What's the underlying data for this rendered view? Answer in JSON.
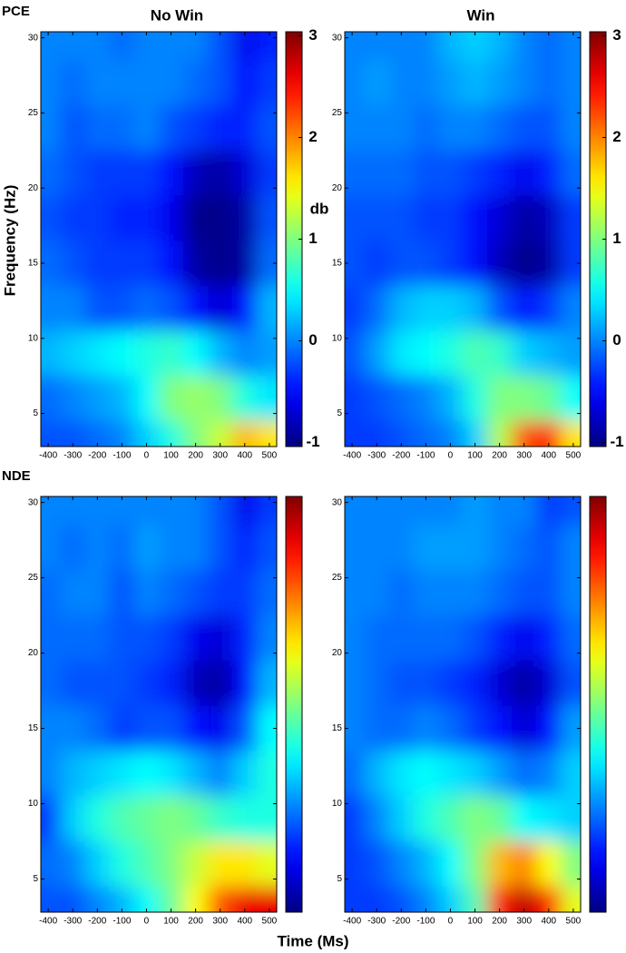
{
  "chart_data": [
    {
      "type": "heatmap",
      "row_label": "PCE",
      "title": "No Win",
      "ylabel": "Frequency (Hz)",
      "colorbar_label": "db",
      "colormap": "jet",
      "x": [
        -400,
        -300,
        -200,
        -100,
        0,
        100,
        200,
        300,
        400,
        500
      ],
      "y": [
        30,
        27,
        24,
        21,
        18,
        15,
        12,
        9,
        6,
        3
      ],
      "z": [
        [
          0,
          0,
          0,
          -0.1,
          0,
          0,
          0,
          -0.2,
          -0.6,
          -0.4
        ],
        [
          0,
          -0.1,
          0,
          0,
          0,
          0,
          -0.1,
          -0.2,
          -0.5,
          -0.3
        ],
        [
          0,
          -0.2,
          -0.1,
          -0.1,
          0,
          -0.2,
          -0.3,
          -0.4,
          -0.4,
          -0.2
        ],
        [
          -0.1,
          -0.2,
          -0.3,
          -0.3,
          -0.3,
          -0.5,
          -0.8,
          -0.9,
          -0.7,
          -0.3
        ],
        [
          -0.2,
          -0.3,
          -0.3,
          -0.4,
          -0.4,
          -0.6,
          -1.0,
          -1.0,
          -0.9,
          -0.2
        ],
        [
          -0.1,
          -0.2,
          -0.3,
          -0.3,
          -0.3,
          -0.5,
          -0.9,
          -1.0,
          -0.9,
          -0.1
        ],
        [
          0,
          0,
          -0.2,
          -0.2,
          -0.1,
          -0.2,
          -0.5,
          -0.7,
          -0.5,
          0.2
        ],
        [
          0.2,
          0.3,
          0.4,
          0.5,
          0.6,
          0.7,
          0.5,
          0.2,
          0,
          0.1
        ],
        [
          -0.1,
          0,
          0.1,
          0.2,
          0.5,
          1.0,
          1.1,
          1.0,
          0.6,
          0.4
        ],
        [
          -0.2,
          -0.2,
          -0.1,
          0,
          0.3,
          0.6,
          1.0,
          1.3,
          1.8,
          1.6
        ]
      ],
      "xlim": [
        -430,
        530
      ],
      "ylim": [
        2.8,
        30.4
      ],
      "clim": [
        -1.04,
        3.04
      ],
      "xticks": [
        -400,
        -300,
        -200,
        -100,
        0,
        100,
        200,
        300,
        400,
        500
      ],
      "yticks": [
        5,
        10,
        15,
        20,
        25,
        30
      ],
      "cticks": [
        -1,
        0,
        1,
        2,
        3
      ]
    },
    {
      "type": "heatmap",
      "title": "Win",
      "colormap": "jet",
      "x": [
        -400,
        -300,
        -200,
        -100,
        0,
        100,
        200,
        300,
        400,
        500
      ],
      "y": [
        30,
        27,
        24,
        21,
        18,
        15,
        12,
        9,
        6,
        3
      ],
      "z": [
        [
          0,
          0,
          0,
          0,
          0.2,
          0.3,
          0.2,
          0,
          -0.1,
          0
        ],
        [
          0,
          0.1,
          0,
          0,
          0.1,
          0.2,
          0.1,
          0,
          -0.1,
          0
        ],
        [
          0,
          0,
          0,
          -0.1,
          0,
          0,
          -0.1,
          -0.2,
          -0.2,
          0
        ],
        [
          -0.1,
          -0.1,
          -0.1,
          -0.2,
          -0.2,
          -0.3,
          -0.4,
          -0.6,
          -0.4,
          -0.1
        ],
        [
          -0.2,
          -0.2,
          -0.2,
          -0.3,
          -0.3,
          -0.5,
          -0.7,
          -0.9,
          -0.8,
          -0.3
        ],
        [
          -0.2,
          -0.3,
          -0.2,
          -0.2,
          -0.3,
          -0.5,
          -0.8,
          -1.0,
          -0.9,
          -0.3
        ],
        [
          -0.3,
          -0.1,
          0.2,
          0.3,
          0.3,
          0.2,
          -0.2,
          -0.5,
          -0.3,
          0
        ],
        [
          -0.2,
          0.1,
          0.4,
          0.5,
          0.6,
          0.8,
          0.7,
          0.3,
          0.2,
          0.1
        ],
        [
          -0.3,
          -0.2,
          -0.1,
          0,
          0.2,
          0.6,
          1.0,
          1.0,
          0.9,
          0.5
        ],
        [
          -0.3,
          -0.3,
          -0.2,
          -0.1,
          0,
          0.3,
          1.2,
          2.2,
          2.4,
          1.6
        ]
      ],
      "xlim": [
        -430,
        530
      ],
      "ylim": [
        2.8,
        30.4
      ],
      "clim": [
        -1.04,
        3.04
      ],
      "xticks": [
        -400,
        -300,
        -200,
        -100,
        0,
        100,
        200,
        300,
        400,
        500
      ],
      "yticks": [
        5,
        10,
        15,
        20,
        25,
        30
      ],
      "cticks": [
        -1,
        0,
        1,
        2,
        3
      ]
    },
    {
      "type": "heatmap",
      "row_label": "NDE",
      "xlabel": "Time (Ms)",
      "colormap": "jet",
      "x": [
        -400,
        -300,
        -200,
        -100,
        0,
        100,
        200,
        300,
        400,
        500
      ],
      "y": [
        30,
        27,
        24,
        21,
        18,
        15,
        12,
        9,
        6,
        3
      ],
      "z": [
        [
          0,
          0,
          0,
          0,
          0,
          0,
          0,
          -0.2,
          -0.6,
          -0.3
        ],
        [
          0,
          -0.1,
          0,
          -0.1,
          0.1,
          0,
          0,
          -0.2,
          -0.4,
          -0.2
        ],
        [
          -0.1,
          0,
          0,
          -0.2,
          0,
          -0.1,
          -0.2,
          -0.3,
          -0.3,
          -0.1
        ],
        [
          -0.1,
          -0.1,
          -0.1,
          -0.2,
          -0.2,
          -0.3,
          -0.6,
          -0.7,
          -0.4,
          0
        ],
        [
          -0.1,
          -0.2,
          -0.2,
          -0.2,
          -0.3,
          -0.4,
          -0.8,
          -0.9,
          -0.5,
          0.2
        ],
        [
          0,
          0,
          -0.1,
          -0.3,
          -0.2,
          -0.2,
          -0.5,
          -0.6,
          -0.2,
          0.5
        ],
        [
          0,
          0.2,
          0.3,
          0.4,
          0.5,
          0.4,
          0.2,
          0,
          0.3,
          0.6
        ],
        [
          -0.3,
          0.3,
          0.6,
          0.8,
          0.9,
          1.0,
          0.9,
          0.7,
          0.6,
          0.6
        ],
        [
          -0.1,
          0,
          0.3,
          0.6,
          0.8,
          1.0,
          1.3,
          1.6,
          1.6,
          1.4
        ],
        [
          -0.2,
          -0.2,
          0,
          0.2,
          0.5,
          0.9,
          1.5,
          2.2,
          2.6,
          2.6
        ]
      ],
      "xlim": [
        -430,
        530
      ],
      "ylim": [
        2.8,
        30.4
      ],
      "clim": [
        -1.04,
        3.04
      ],
      "xticks": [
        -400,
        -300,
        -200,
        -100,
        0,
        100,
        200,
        300,
        400,
        500
      ],
      "yticks": [
        5,
        10,
        15,
        20,
        25,
        30
      ]
    },
    {
      "type": "heatmap",
      "colormap": "jet",
      "x": [
        -400,
        -300,
        -200,
        -100,
        0,
        100,
        200,
        300,
        400,
        500
      ],
      "y": [
        30,
        27,
        24,
        21,
        18,
        15,
        12,
        9,
        6,
        3
      ],
      "z": [
        [
          0,
          0,
          0,
          0,
          0,
          0.1,
          0,
          0,
          -0.3,
          -0.2
        ],
        [
          0,
          0,
          0,
          0.1,
          0.1,
          0.1,
          0,
          -0.1,
          -0.2,
          0
        ],
        [
          0,
          0,
          -0.1,
          0,
          0,
          0,
          -0.1,
          -0.2,
          -0.2,
          0
        ],
        [
          0,
          -0.1,
          -0.1,
          -0.1,
          -0.1,
          -0.2,
          -0.4,
          -0.6,
          -0.4,
          -0.1
        ],
        [
          0,
          -0.1,
          -0.2,
          -0.2,
          -0.3,
          -0.4,
          -0.7,
          -0.9,
          -0.7,
          -0.2
        ],
        [
          0,
          -0.1,
          -0.1,
          0,
          -0.1,
          -0.3,
          -0.5,
          -0.7,
          -0.5,
          0.1
        ],
        [
          -0.1,
          0.2,
          0.4,
          0.5,
          0.4,
          0.3,
          0.1,
          -0.1,
          0,
          0.3
        ],
        [
          -0.3,
          0,
          0.3,
          0.6,
          0.8,
          1.0,
          0.9,
          0.5,
          0.4,
          0.3
        ],
        [
          -0.3,
          -0.2,
          0,
          0.2,
          0.5,
          1.0,
          1.8,
          2.0,
          1.5,
          1.0
        ],
        [
          -0.3,
          -0.3,
          -0.2,
          0,
          0.3,
          0.8,
          2.4,
          2.8,
          2.4,
          1.4
        ]
      ],
      "xlim": [
        -430,
        530
      ],
      "ylim": [
        2.8,
        30.4
      ],
      "clim": [
        -1.04,
        3.04
      ],
      "xticks": [
        -400,
        -300,
        -200,
        -100,
        0,
        100,
        200,
        300,
        400,
        500
      ],
      "yticks": [
        5,
        10,
        15,
        20,
        25,
        30
      ]
    }
  ]
}
